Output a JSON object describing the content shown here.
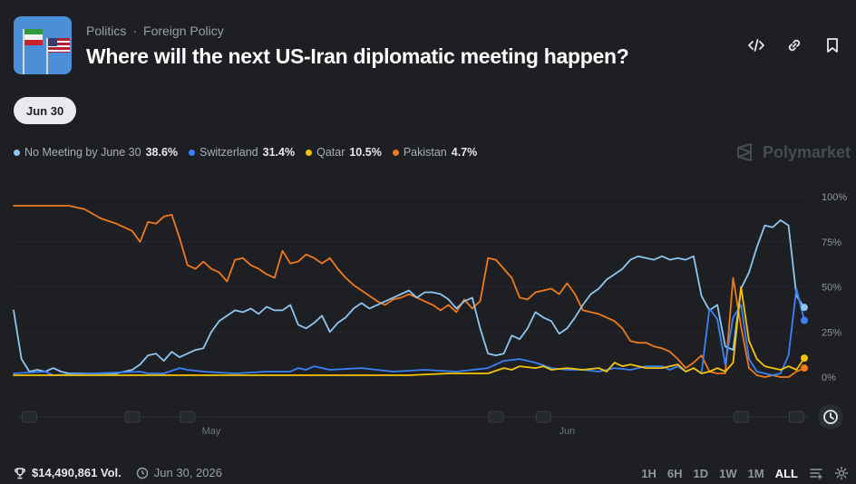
{
  "breadcrumbs": [
    "Politics",
    "Foreign Policy"
  ],
  "title": "Where will the next US-Iran diplomatic meeting happen?",
  "date_filter": "Jun 30",
  "brand": "Polymarket",
  "legend": [
    {
      "name": "No Meeting by June 30",
      "value": "38.6%",
      "color": "#8ec6f0"
    },
    {
      "name": "Switzerland",
      "value": "31.4%",
      "color": "#3b82f6"
    },
    {
      "name": "Qatar",
      "value": "10.5%",
      "color": "#f5c400"
    },
    {
      "name": "Pakistan",
      "value": "4.7%",
      "color": "#f07a1a"
    }
  ],
  "footer": {
    "volume": "$14,490,861 Vol.",
    "end_date": "Jun 30, 2026"
  },
  "ranges": [
    "1H",
    "6H",
    "1D",
    "1W",
    "1M",
    "ALL"
  ],
  "active_range": "ALL",
  "icons": {
    "top": [
      "code-icon",
      "link-icon",
      "bookmark-icon"
    ],
    "footer": [
      "trophy-icon",
      "clock-icon"
    ],
    "controls": [
      "filter-lines-icon",
      "gear-icon",
      "history-clock-icon"
    ]
  },
  "chart_data": {
    "type": "line",
    "x_labels": [
      "May",
      "Jun"
    ],
    "y_ticks": [
      "100%",
      "75%",
      "50%",
      "25%",
      "0%"
    ],
    "ylim": [
      0,
      100
    ],
    "x_range": [
      0,
      100
    ],
    "x_label_positions": [
      25,
      70
    ],
    "grid": "horizontal-dotted",
    "series": [
      {
        "name": "Pakistan",
        "color": "#f07a1a",
        "end_marker": true,
        "points": [
          [
            0,
            95
          ],
          [
            7,
            95
          ],
          [
            9,
            93
          ],
          [
            11,
            88
          ],
          [
            13,
            85
          ],
          [
            15,
            81
          ],
          [
            16,
            75
          ],
          [
            17,
            86
          ],
          [
            18,
            85
          ],
          [
            19,
            89
          ],
          [
            20,
            90
          ],
          [
            21,
            77
          ],
          [
            22,
            62
          ],
          [
            23,
            60
          ],
          [
            24,
            64
          ],
          [
            25,
            60
          ],
          [
            26,
            58
          ],
          [
            27,
            53
          ],
          [
            28,
            65
          ],
          [
            29,
            66
          ],
          [
            30,
            62
          ],
          [
            31,
            60
          ],
          [
            32,
            57
          ],
          [
            33,
            55
          ],
          [
            34,
            70
          ],
          [
            35,
            63
          ],
          [
            36,
            64
          ],
          [
            37,
            68
          ],
          [
            38,
            66
          ],
          [
            39,
            63
          ],
          [
            40,
            66
          ],
          [
            41,
            60
          ],
          [
            42,
            55
          ],
          [
            43,
            51
          ],
          [
            44,
            48
          ],
          [
            45,
            45
          ],
          [
            46,
            42
          ],
          [
            47,
            40
          ],
          [
            48,
            43
          ],
          [
            49,
            44
          ],
          [
            50,
            46
          ],
          [
            51,
            44
          ],
          [
            52,
            42
          ],
          [
            53,
            40
          ],
          [
            54,
            37
          ],
          [
            55,
            40
          ],
          [
            56,
            36
          ],
          [
            57,
            43
          ],
          [
            58,
            38
          ],
          [
            59,
            42
          ],
          [
            60,
            66
          ],
          [
            61,
            65
          ],
          [
            62,
            60
          ],
          [
            63,
            55
          ],
          [
            64,
            44
          ],
          [
            65,
            43
          ],
          [
            66,
            47
          ],
          [
            67,
            48
          ],
          [
            68,
            49
          ],
          [
            69,
            46
          ],
          [
            70,
            52
          ],
          [
            71,
            46
          ],
          [
            72,
            37
          ],
          [
            73,
            36
          ],
          [
            74,
            35
          ],
          [
            75,
            33
          ],
          [
            76,
            31
          ],
          [
            77,
            27
          ],
          [
            78,
            20
          ],
          [
            79,
            19
          ],
          [
            80,
            19
          ],
          [
            81,
            17
          ],
          [
            82,
            16
          ],
          [
            83,
            14
          ],
          [
            84,
            10
          ],
          [
            85,
            5
          ],
          [
            86,
            8
          ],
          [
            87,
            12
          ],
          [
            88,
            3
          ],
          [
            89,
            2
          ],
          [
            90,
            2
          ],
          [
            91,
            55
          ],
          [
            92,
            28
          ],
          [
            93,
            5
          ],
          [
            94,
            1
          ],
          [
            95,
            0
          ],
          [
            96,
            1
          ],
          [
            97,
            0
          ],
          [
            98,
            0
          ],
          [
            99,
            3
          ],
          [
            100,
            5
          ]
        ]
      },
      {
        "name": "No Meeting by June 30",
        "color": "#8ec6f0",
        "end_marker": true,
        "points": [
          [
            0,
            37
          ],
          [
            1,
            10
          ],
          [
            2,
            3
          ],
          [
            3,
            4
          ],
          [
            4,
            3
          ],
          [
            5,
            5
          ],
          [
            6,
            3
          ],
          [
            7,
            2
          ],
          [
            8,
            2
          ],
          [
            9,
            2
          ],
          [
            10,
            2
          ],
          [
            11,
            2
          ],
          [
            12,
            2
          ],
          [
            13,
            2
          ],
          [
            14,
            3
          ],
          [
            15,
            4
          ],
          [
            16,
            7
          ],
          [
            17,
            12
          ],
          [
            18,
            13
          ],
          [
            19,
            9
          ],
          [
            20,
            14
          ],
          [
            21,
            11
          ],
          [
            22,
            13
          ],
          [
            23,
            15
          ],
          [
            24,
            16
          ],
          [
            25,
            25
          ],
          [
            26,
            31
          ],
          [
            27,
            34
          ],
          [
            28,
            37
          ],
          [
            29,
            36
          ],
          [
            30,
            38
          ],
          [
            31,
            35
          ],
          [
            32,
            39
          ],
          [
            33,
            37
          ],
          [
            34,
            37
          ],
          [
            35,
            40
          ],
          [
            36,
            29
          ],
          [
            37,
            27
          ],
          [
            38,
            30
          ],
          [
            39,
            34
          ],
          [
            40,
            25
          ],
          [
            41,
            30
          ],
          [
            42,
            33
          ],
          [
            43,
            38
          ],
          [
            44,
            41
          ],
          [
            45,
            38
          ],
          [
            46,
            40
          ],
          [
            47,
            42
          ],
          [
            48,
            44
          ],
          [
            49,
            46
          ],
          [
            50,
            48
          ],
          [
            51,
            44
          ],
          [
            52,
            47
          ],
          [
            53,
            47
          ],
          [
            54,
            46
          ],
          [
            55,
            43
          ],
          [
            56,
            38
          ],
          [
            57,
            42
          ],
          [
            58,
            44
          ],
          [
            59,
            27
          ],
          [
            60,
            13
          ],
          [
            61,
            12
          ],
          [
            62,
            13
          ],
          [
            63,
            23
          ],
          [
            64,
            21
          ],
          [
            65,
            27
          ],
          [
            66,
            36
          ],
          [
            67,
            33
          ],
          [
            68,
            31
          ],
          [
            69,
            24
          ],
          [
            70,
            27
          ],
          [
            71,
            33
          ],
          [
            72,
            40
          ],
          [
            73,
            46
          ],
          [
            74,
            49
          ],
          [
            75,
            54
          ],
          [
            76,
            57
          ],
          [
            77,
            60
          ],
          [
            78,
            65
          ],
          [
            79,
            67
          ],
          [
            80,
            66
          ],
          [
            81,
            65
          ],
          [
            82,
            67
          ],
          [
            83,
            65
          ],
          [
            84,
            66
          ],
          [
            85,
            65
          ],
          [
            86,
            67
          ],
          [
            87,
            45
          ],
          [
            88,
            37
          ],
          [
            89,
            40
          ],
          [
            90,
            17
          ],
          [
            91,
            15
          ],
          [
            92,
            49
          ],
          [
            93,
            58
          ],
          [
            94,
            72
          ],
          [
            95,
            84
          ],
          [
            96,
            83
          ],
          [
            97,
            87
          ],
          [
            98,
            84
          ],
          [
            99,
            45
          ],
          [
            100,
            38.6
          ]
        ]
      },
      {
        "name": "Switzerland",
        "color": "#3b82f6",
        "end_marker": true,
        "points": [
          [
            0,
            2
          ],
          [
            4,
            3
          ],
          [
            5,
            1
          ],
          [
            10,
            2
          ],
          [
            16,
            3
          ],
          [
            17,
            2
          ],
          [
            19,
            2
          ],
          [
            21,
            5
          ],
          [
            22,
            4
          ],
          [
            24,
            3
          ],
          [
            28,
            2
          ],
          [
            32,
            3
          ],
          [
            35,
            3
          ],
          [
            36,
            5
          ],
          [
            37,
            4
          ],
          [
            38,
            6
          ],
          [
            40,
            4
          ],
          [
            44,
            5
          ],
          [
            48,
            3
          ],
          [
            52,
            4
          ],
          [
            56,
            3
          ],
          [
            60,
            5
          ],
          [
            62,
            9
          ],
          [
            64,
            10
          ],
          [
            66,
            8
          ],
          [
            68,
            5
          ],
          [
            70,
            4
          ],
          [
            72,
            4
          ],
          [
            74,
            3
          ],
          [
            76,
            5
          ],
          [
            78,
            4
          ],
          [
            80,
            6
          ],
          [
            82,
            6
          ],
          [
            83,
            4
          ],
          [
            84,
            6
          ],
          [
            85,
            3
          ],
          [
            86,
            5
          ],
          [
            87,
            2
          ],
          [
            88,
            38
          ],
          [
            89,
            32
          ],
          [
            90,
            7
          ],
          [
            91,
            33
          ],
          [
            92,
            40
          ],
          [
            93,
            10
          ],
          [
            94,
            3
          ],
          [
            95,
            2
          ],
          [
            96,
            1
          ],
          [
            97,
            2
          ],
          [
            98,
            12
          ],
          [
            99,
            49
          ],
          [
            100,
            31.4
          ]
        ]
      },
      {
        "name": "Qatar",
        "color": "#f5c400",
        "end_marker": true,
        "points": [
          [
            0,
            1
          ],
          [
            10,
            1
          ],
          [
            20,
            1
          ],
          [
            30,
            1
          ],
          [
            40,
            1
          ],
          [
            50,
            1
          ],
          [
            55,
            2
          ],
          [
            60,
            2
          ],
          [
            62,
            5
          ],
          [
            63,
            4
          ],
          [
            64,
            6
          ],
          [
            66,
            5
          ],
          [
            67,
            6
          ],
          [
            68,
            4
          ],
          [
            70,
            5
          ],
          [
            72,
            4
          ],
          [
            74,
            5
          ],
          [
            75,
            3
          ],
          [
            76,
            8
          ],
          [
            77,
            6
          ],
          [
            78,
            7
          ],
          [
            80,
            5
          ],
          [
            82,
            5
          ],
          [
            84,
            7
          ],
          [
            85,
            3
          ],
          [
            86,
            5
          ],
          [
            87,
            2
          ],
          [
            88,
            3
          ],
          [
            89,
            5
          ],
          [
            90,
            3
          ],
          [
            91,
            8
          ],
          [
            92,
            50
          ],
          [
            93,
            20
          ],
          [
            94,
            10
          ],
          [
            95,
            6
          ],
          [
            96,
            5
          ],
          [
            97,
            4
          ],
          [
            98,
            6
          ],
          [
            99,
            4
          ],
          [
            100,
            10.5
          ]
        ]
      }
    ]
  }
}
